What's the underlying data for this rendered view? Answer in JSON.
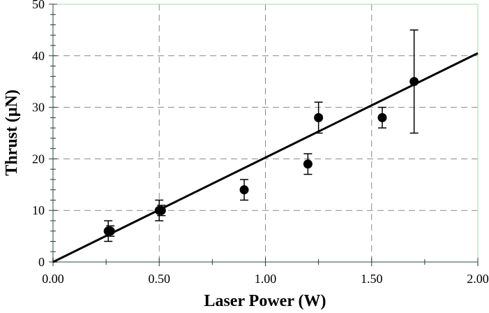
{
  "chart_data": {
    "type": "scatter",
    "title": "",
    "xlabel": "Laser Power (W)",
    "ylabel": "Thrust (μN)",
    "xlim": [
      0,
      2.0
    ],
    "ylim": [
      0,
      50
    ],
    "xticks": [
      "0.00",
      "0.50",
      "1.00",
      "1.50",
      "2.00"
    ],
    "yticks": [
      "0",
      "10",
      "20",
      "30",
      "40",
      "50"
    ],
    "grid": true,
    "points": [
      {
        "x": 0.26,
        "y": 6,
        "ylow": 4,
        "yhigh": 8
      },
      {
        "x": 0.27,
        "y": 6,
        "ylow": 5,
        "yhigh": 7
      },
      {
        "x": 0.5,
        "y": 10,
        "ylow": 8,
        "yhigh": 12
      },
      {
        "x": 0.51,
        "y": 10,
        "ylow": 9,
        "yhigh": 11
      },
      {
        "x": 0.9,
        "y": 14,
        "ylow": 12,
        "yhigh": 16
      },
      {
        "x": 1.2,
        "y": 19,
        "ylow": 17,
        "yhigh": 21
      },
      {
        "x": 1.25,
        "y": 28,
        "ylow": 25,
        "yhigh": 31
      },
      {
        "x": 1.55,
        "y": 28,
        "ylow": 26,
        "yhigh": 30
      },
      {
        "x": 1.7,
        "y": 35,
        "ylow": 25,
        "yhigh": 45
      }
    ],
    "fit_line": {
      "x": [
        0,
        2.0
      ],
      "y": [
        0,
        40.5
      ]
    },
    "colors": {
      "axis": "#8fa89a",
      "grid": "#888888",
      "marker": "#000000",
      "border": "#9fdf9f"
    }
  }
}
